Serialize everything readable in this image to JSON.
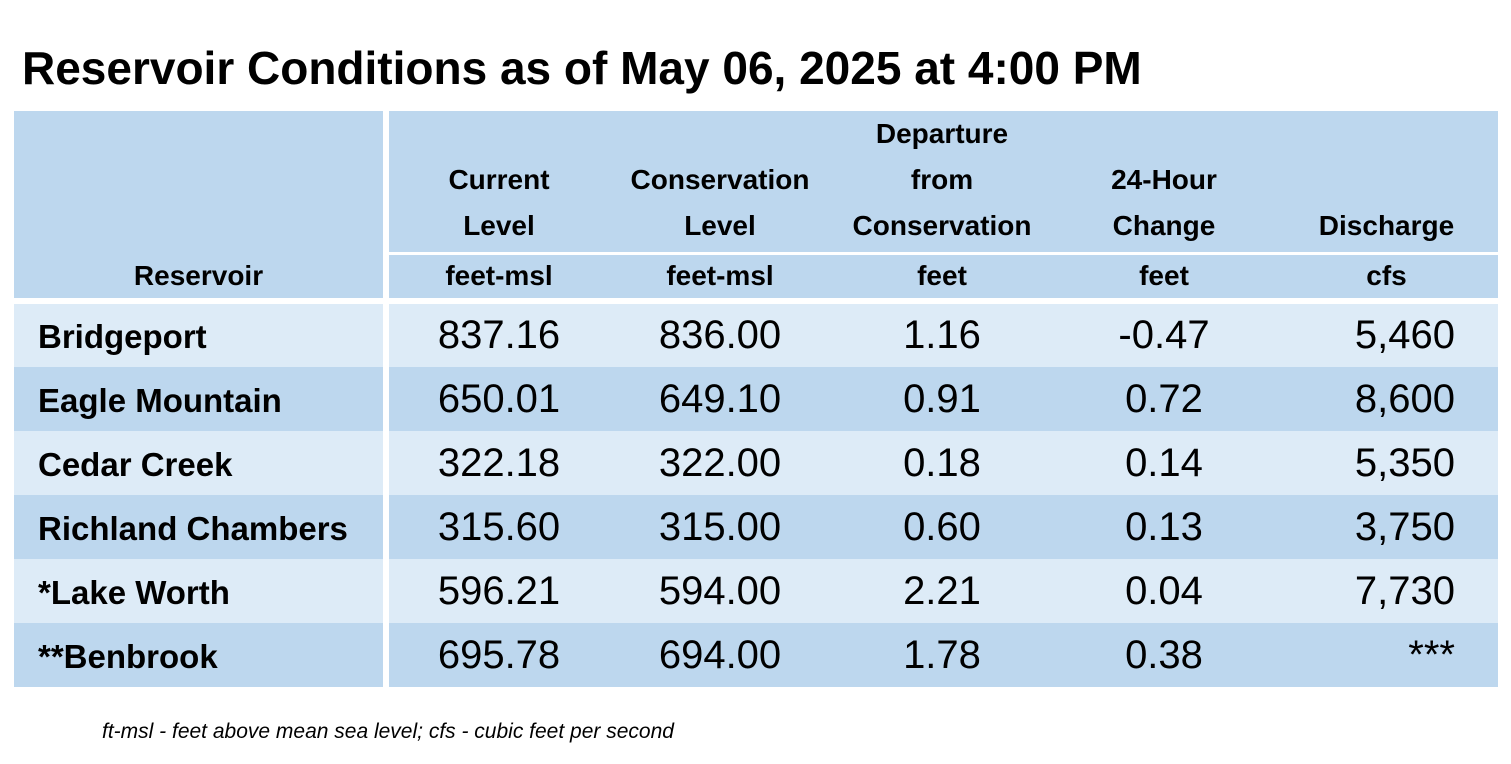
{
  "title": "Reservoir Conditions as of May 06, 2025 at 4:00 PM",
  "columns": [
    {
      "key": "reservoir",
      "lines": [
        "",
        "",
        "",
        ""
      ],
      "unit": "Reservoir"
    },
    {
      "key": "current",
      "lines": [
        "",
        "Current",
        "Level"
      ],
      "unit": "feet-msl"
    },
    {
      "key": "conservation",
      "lines": [
        "",
        "Conservation",
        "Level"
      ],
      "unit": "feet-msl"
    },
    {
      "key": "departure",
      "lines": [
        "Departure",
        "from",
        "Conservation"
      ],
      "unit": "feet"
    },
    {
      "key": "change",
      "lines": [
        "",
        "24-Hour",
        "Change"
      ],
      "unit": "feet"
    },
    {
      "key": "discharge",
      "lines": [
        "",
        "",
        "Discharge"
      ],
      "unit": "cfs"
    }
  ],
  "rows": [
    {
      "name": "Bridgeport",
      "current": "837.16",
      "conservation": "836.00",
      "departure": "1.16",
      "change": "-0.47",
      "discharge": "5,460"
    },
    {
      "name": "Eagle Mountain",
      "current": "650.01",
      "conservation": "649.10",
      "departure": "0.91",
      "change": "0.72",
      "discharge": "8,600"
    },
    {
      "name": "Cedar Creek",
      "current": "322.18",
      "conservation": "322.00",
      "departure": "0.18",
      "change": "0.14",
      "discharge": "5,350"
    },
    {
      "name": "Richland Chambers",
      "current": "315.60",
      "conservation": "315.00",
      "departure": "0.60",
      "change": "0.13",
      "discharge": "3,750"
    },
    {
      "name": "*Lake Worth",
      "current": "596.21",
      "conservation": "594.00",
      "departure": "2.21",
      "change": "0.04",
      "discharge": "7,730"
    },
    {
      "name": "**Benbrook",
      "current": "695.78",
      "conservation": "694.00",
      "departure": "1.78",
      "change": "0.38",
      "discharge": "***"
    }
  ],
  "footnote": "ft-msl - feet above mean sea level; cfs - cubic feet per second",
  "colors": {
    "header_bg": "#bdd7ee",
    "row_light": "#ddebf7",
    "row_dark": "#bdd7ee",
    "divider": "#ffffff"
  }
}
